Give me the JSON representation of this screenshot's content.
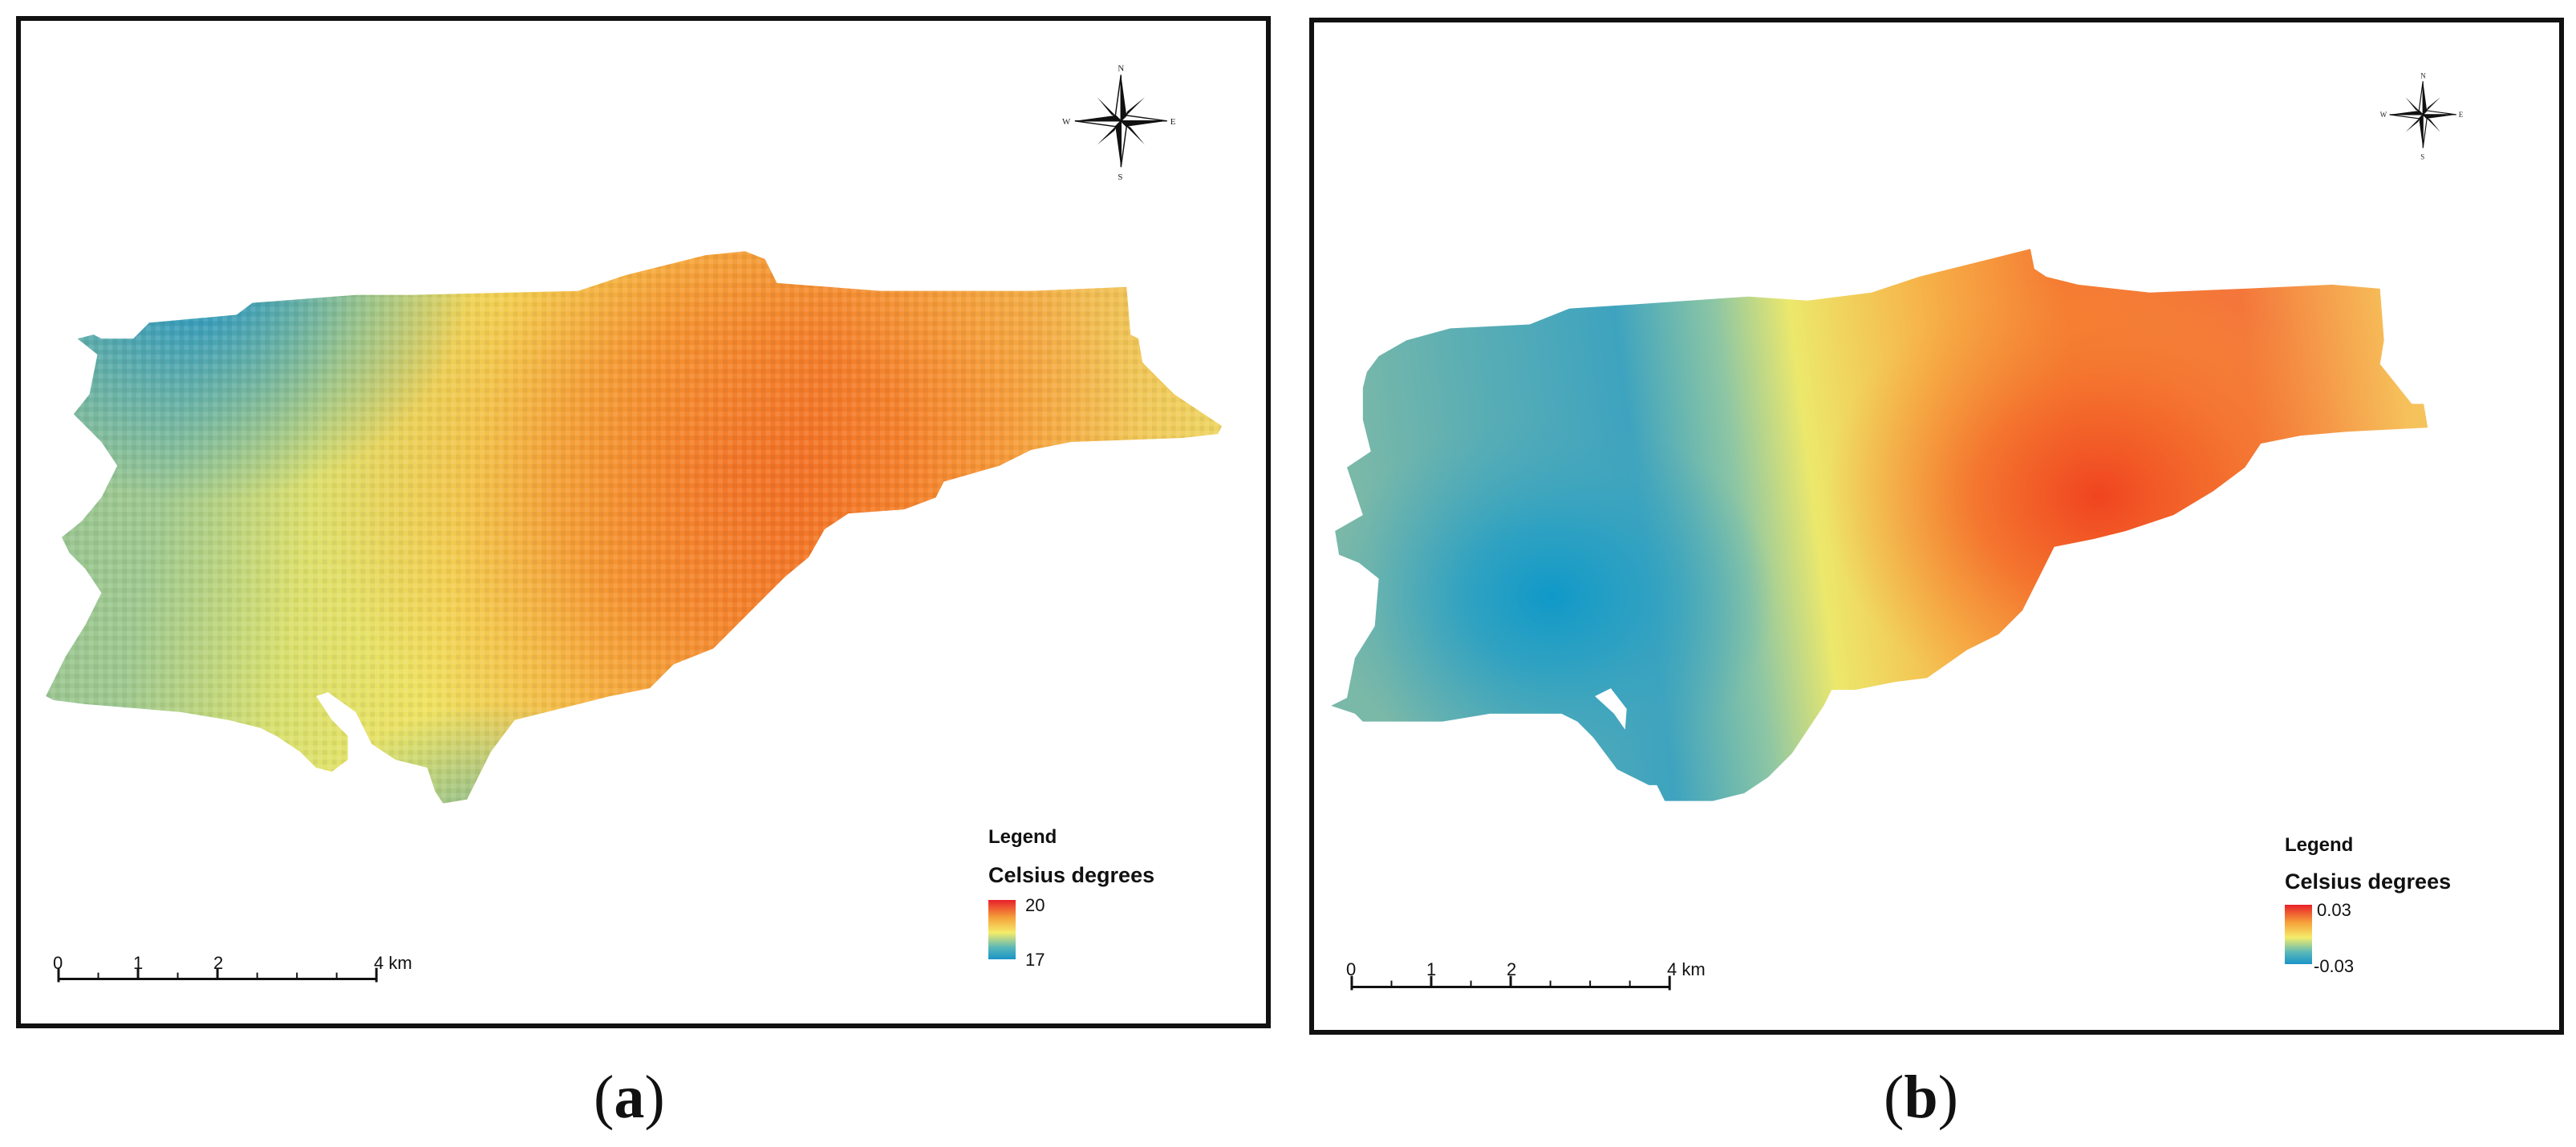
{
  "panels": {
    "a": {
      "legend_title": "Legend",
      "legend_subtitle": "Celsius degrees",
      "ramp_max": "20",
      "ramp_min": "17",
      "scale": {
        "labels": [
          "0",
          "1",
          "2",
          "4 km"
        ]
      },
      "compass": {
        "n": "N",
        "s": "S",
        "e": "E",
        "w": "W"
      },
      "caption": {
        "open": "(",
        "letter": "a",
        "close": ")"
      }
    },
    "b": {
      "legend_title": "Legend",
      "legend_subtitle": "Celsius degrees",
      "ramp_max": "0.03",
      "ramp_min": "-0.03",
      "scale": {
        "labels": [
          "0",
          "1",
          "2",
          "4 km"
        ]
      },
      "compass": {
        "n": "N",
        "s": "S",
        "e": "E",
        "w": "W"
      },
      "caption": {
        "open": "(",
        "letter": "b",
        "close": ")"
      }
    }
  },
  "colors": {
    "hot": "#e8202a",
    "warm": "#f5a23a",
    "mid": "#f5ec6a",
    "cool": "#5ab8b8",
    "cold": "#1a93c8",
    "frame": "#111111"
  }
}
